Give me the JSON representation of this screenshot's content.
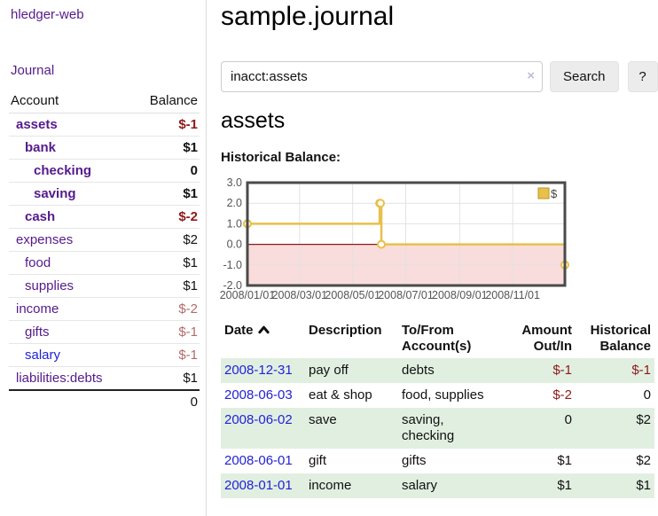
{
  "app": {
    "title": "hledger-web"
  },
  "sidebar": {
    "journal_link": "Journal",
    "columns": {
      "account": "Account",
      "balance": "Balance"
    },
    "accounts": [
      {
        "name": "assets",
        "balance": "$-1"
      },
      {
        "name": "bank",
        "balance": "$1"
      },
      {
        "name": "checking",
        "balance": "0"
      },
      {
        "name": "saving",
        "balance": "$1"
      },
      {
        "name": "cash",
        "balance": "$-2"
      },
      {
        "name": "expenses",
        "balance": "$2"
      },
      {
        "name": "food",
        "balance": "$1"
      },
      {
        "name": "supplies",
        "balance": "$1"
      },
      {
        "name": "income",
        "balance": "$-2"
      },
      {
        "name": "gifts",
        "balance": "$-1"
      },
      {
        "name": "salary",
        "balance": "$-1"
      },
      {
        "name": "liabilities:debts",
        "balance": "$1"
      }
    ],
    "total": "0"
  },
  "main": {
    "title": "sample.journal",
    "search": {
      "value": "inacct:assets",
      "clear_icon": "×",
      "button": "Search",
      "help": "?"
    },
    "account_heading": "assets",
    "chart_label": "Historical Balance:"
  },
  "chart_data": {
    "type": "line",
    "step": true,
    "title": "Historical Balance",
    "legend": [
      "$"
    ],
    "legend_position": "top-right",
    "grid": true,
    "xlim": [
      "2008-01-01",
      "2008-12-31"
    ],
    "ylim": [
      -2,
      3
    ],
    "yticks": [
      3,
      2,
      1,
      0,
      -1,
      -2
    ],
    "ytick_labels": [
      "3.0",
      "2.0",
      "1.0",
      "0.0",
      "-1.0",
      "-2.0"
    ],
    "xtick_labels": [
      "2008/01/01",
      "2008/03/01",
      "2008/05/01",
      "2008/07/01",
      "2008/09/01",
      "2008/11/01"
    ],
    "series": [
      {
        "name": "$",
        "points": [
          [
            "2008-01-01",
            1
          ],
          [
            "2008-06-01",
            2
          ],
          [
            "2008-06-02",
            2
          ],
          [
            "2008-06-03",
            0
          ],
          [
            "2008-12-31",
            -1
          ]
        ]
      }
    ],
    "colors": {
      "line": "#e8c04a",
      "marker_fill": "#fffdf5",
      "negative_region": "#f9dcdc",
      "zero_line": "#8b1a1a",
      "border": "#4a4a4a",
      "grid": "#e2e2e2",
      "axis_text": "#555555"
    }
  },
  "transactions": {
    "headers": {
      "date": "Date",
      "description": "Description",
      "accounts": "To/From Account(s)",
      "amount": "Amount Out/In",
      "balance": "Historical Balance"
    },
    "rows": [
      {
        "date": "2008-12-31",
        "description": "pay off",
        "accounts": "debts",
        "amount": "$-1",
        "balance": "$-1"
      },
      {
        "date": "2008-06-03",
        "description": "eat & shop",
        "accounts": "food, supplies",
        "amount": "$-2",
        "balance": "0"
      },
      {
        "date": "2008-06-02",
        "description": "save",
        "accounts": "saving,\nchecking",
        "amount": "0",
        "balance": "$2"
      },
      {
        "date": "2008-06-01",
        "description": "gift",
        "accounts": "gifts",
        "amount": "$1",
        "balance": "$2"
      },
      {
        "date": "2008-01-01",
        "description": "income",
        "accounts": "salary",
        "amount": "$1",
        "balance": "$1"
      }
    ]
  },
  "colors": {
    "link_purple": "#551a8b",
    "link_blue": "#2222d6",
    "negative_strong": "#8e1919",
    "negative_soft": "#b56a6a",
    "row_green": "#e1efe1"
  }
}
